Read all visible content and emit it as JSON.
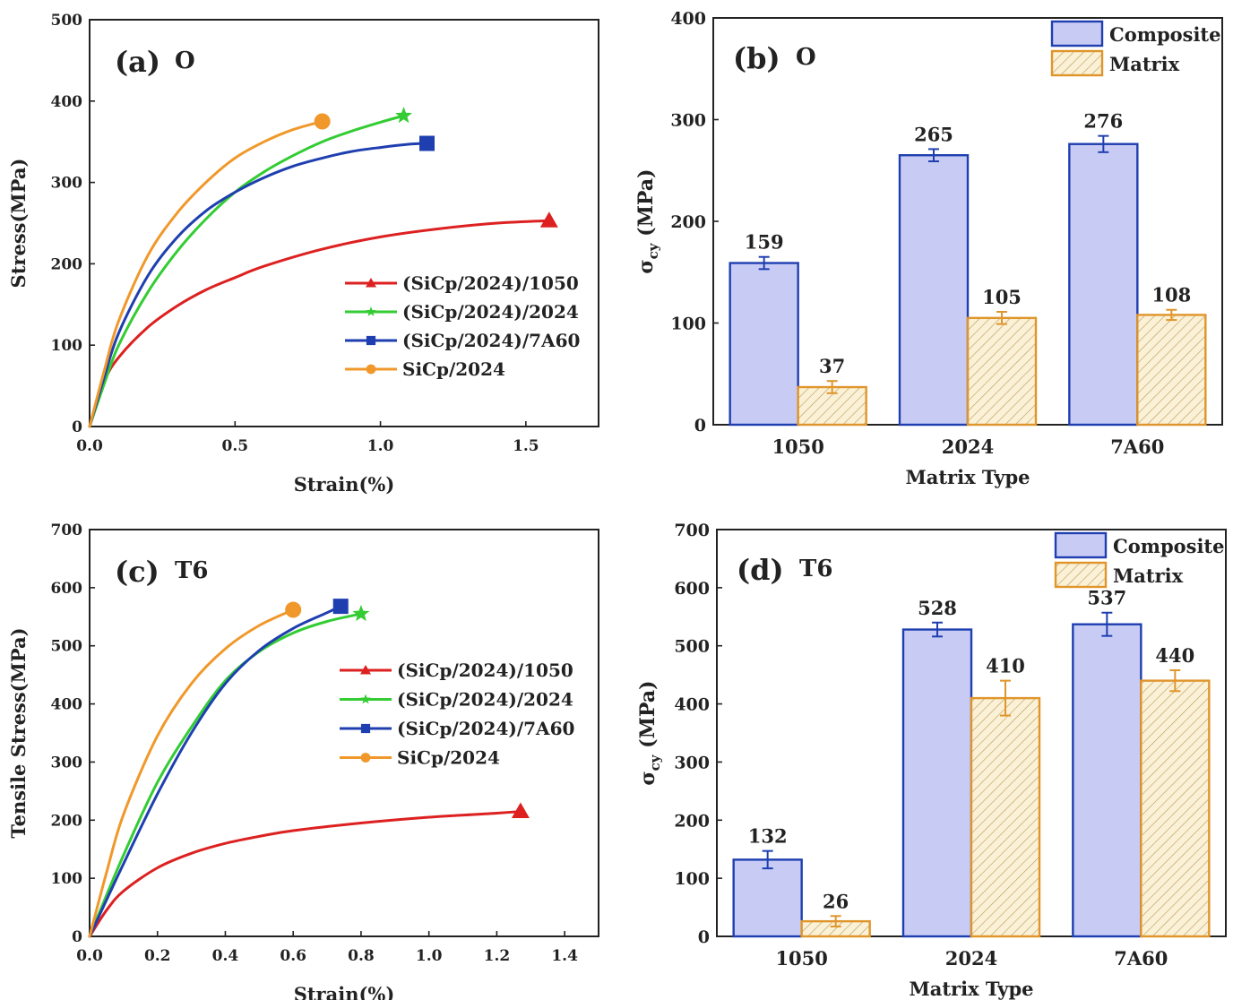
{
  "chart_data": [
    {
      "id": "a",
      "type": "line",
      "panel_label": "(a)",
      "condition": "O",
      "xlabel": "Strain(%)",
      "ylabel": "Stress(MPa)",
      "xlim": [
        0,
        1.75
      ],
      "ylim": [
        0,
        500
      ],
      "xticks": [
        0.0,
        0.5,
        1.0,
        1.5
      ],
      "xtick_labels": [
        "0.0",
        "0.5",
        "1.0",
        "1.5"
      ],
      "yticks": [
        0,
        100,
        200,
        300,
        400,
        500
      ],
      "ytick_labels": [
        "0",
        "100",
        "200",
        "300",
        "400",
        "500"
      ],
      "legend_position": "lower-right",
      "series": [
        {
          "name": "(SiCp/2024)/1050",
          "color": "#dd2020",
          "marker": "triangle",
          "x": [
            0,
            0.05,
            0.1,
            0.2,
            0.3,
            0.4,
            0.5,
            0.6,
            0.8,
            1.0,
            1.2,
            1.4,
            1.58
          ],
          "y": [
            0,
            55,
            85,
            122,
            148,
            168,
            183,
            197,
            218,
            233,
            243,
            250,
            253
          ]
        },
        {
          "name": "(SiCp/2024)/2024",
          "color": "#33cc33",
          "marker": "star",
          "x": [
            0,
            0.05,
            0.1,
            0.2,
            0.3,
            0.4,
            0.5,
            0.6,
            0.7,
            0.8,
            0.9,
            1.0,
            1.08
          ],
          "y": [
            0,
            52,
            100,
            165,
            215,
            255,
            288,
            313,
            333,
            350,
            363,
            374,
            382
          ]
        },
        {
          "name": "(SiCp/2024)/7A60",
          "color": "#1f3fb0",
          "marker": "square",
          "x": [
            0,
            0.05,
            0.1,
            0.2,
            0.3,
            0.4,
            0.5,
            0.6,
            0.7,
            0.8,
            0.9,
            1.0,
            1.1,
            1.16
          ],
          "y": [
            0,
            60,
            115,
            185,
            232,
            265,
            288,
            306,
            320,
            330,
            338,
            343,
            347,
            348
          ]
        },
        {
          "name": "SiCp/2024",
          "color": "#f0982a",
          "marker": "circle",
          "x": [
            0,
            0.05,
            0.1,
            0.2,
            0.3,
            0.4,
            0.5,
            0.6,
            0.7,
            0.8
          ],
          "y": [
            0,
            68,
            130,
            210,
            262,
            300,
            330,
            350,
            365,
            375
          ]
        }
      ]
    },
    {
      "id": "b",
      "type": "bar",
      "panel_label": "(b)",
      "condition": "O",
      "xlabel": "Matrix Type",
      "ylabel_main": "σ",
      "ylabel_sub": "cy",
      "ylabel_unit": "(MPa)",
      "ylim": [
        0,
        400
      ],
      "yticks": [
        0,
        100,
        200,
        300,
        400
      ],
      "ytick_labels": [
        "0",
        "100",
        "200",
        "300",
        "400"
      ],
      "categories": [
        "1050",
        "2024",
        "7A60"
      ],
      "legend_position": "top-right",
      "series": [
        {
          "name": "Composite",
          "fill": "#c8ccf5",
          "stroke": "#1f3fb0",
          "hatch": false,
          "values": [
            159,
            265,
            276
          ],
          "errors": [
            6,
            6,
            8
          ],
          "value_labels": [
            "159",
            "265",
            "276"
          ]
        },
        {
          "name": "Matrix",
          "fill": "#fbf1d6",
          "stroke": "#e0952a",
          "hatch": true,
          "values": [
            37,
            105,
            108
          ],
          "errors": [
            6,
            6,
            5
          ],
          "value_labels": [
            "37",
            "105",
            "108"
          ]
        }
      ]
    },
    {
      "id": "c",
      "type": "line",
      "panel_label": "(c)",
      "condition": "T6",
      "xlabel": "Strain(%)",
      "ylabel": "Tensile Stress(MPa)",
      "xlim": [
        0,
        1.5
      ],
      "ylim": [
        0,
        700
      ],
      "xticks": [
        0.0,
        0.2,
        0.4,
        0.6,
        0.8,
        1.0,
        1.2,
        1.4
      ],
      "xtick_labels": [
        "0.0",
        "0.2",
        "0.4",
        "0.6",
        "0.8",
        "1.0",
        "1.2",
        "1.4"
      ],
      "yticks": [
        0,
        100,
        200,
        300,
        400,
        500,
        600,
        700
      ],
      "ytick_labels": [
        "0",
        "100",
        "200",
        "300",
        "400",
        "500",
        "600",
        "700"
      ],
      "legend_position": "middle-right",
      "series": [
        {
          "name": "(SiCp/2024)/1050",
          "color": "#dd2020",
          "marker": "triangle",
          "x": [
            0,
            0.05,
            0.1,
            0.2,
            0.3,
            0.4,
            0.5,
            0.6,
            0.8,
            1.0,
            1.2,
            1.27
          ],
          "y": [
            0,
            45,
            78,
            118,
            143,
            160,
            172,
            182,
            195,
            205,
            212,
            215
          ]
        },
        {
          "name": "(SiCp/2024)/2024",
          "color": "#33cc33",
          "marker": "star",
          "x": [
            0,
            0.1,
            0.2,
            0.3,
            0.4,
            0.5,
            0.6,
            0.7,
            0.8
          ],
          "y": [
            0,
            140,
            265,
            360,
            440,
            490,
            522,
            542,
            555
          ]
        },
        {
          "name": "(SiCp/2024)/7A60",
          "color": "#1f3fb0",
          "marker": "square",
          "x": [
            0,
            0.1,
            0.2,
            0.3,
            0.4,
            0.5,
            0.6,
            0.7,
            0.74
          ],
          "y": [
            0,
            125,
            245,
            350,
            435,
            492,
            530,
            557,
            568
          ]
        },
        {
          "name": "SiCp/2024",
          "color": "#f0982a",
          "marker": "circle",
          "x": [
            0,
            0.05,
            0.1,
            0.2,
            0.3,
            0.4,
            0.5,
            0.6
          ],
          "y": [
            0,
            110,
            210,
            345,
            435,
            495,
            535,
            562
          ]
        }
      ]
    },
    {
      "id": "d",
      "type": "bar",
      "panel_label": "(d)",
      "condition": "T6",
      "xlabel": "Matrix Type",
      "ylabel_main": "σ",
      "ylabel_sub": "cy",
      "ylabel_unit": "(MPa)",
      "ylim": [
        0,
        700
      ],
      "yticks": [
        0,
        100,
        200,
        300,
        400,
        500,
        600,
        700
      ],
      "ytick_labels": [
        "0",
        "100",
        "200",
        "300",
        "400",
        "500",
        "600",
        "700"
      ],
      "categories": [
        "1050",
        "2024",
        "7A60"
      ],
      "legend_position": "top-right",
      "series": [
        {
          "name": "Composite",
          "fill": "#c8ccf5",
          "stroke": "#1f3fb0",
          "hatch": false,
          "values": [
            132,
            528,
            537
          ],
          "errors": [
            15,
            12,
            20
          ],
          "value_labels": [
            "132",
            "528",
            "537"
          ]
        },
        {
          "name": "Matrix",
          "fill": "#fbf1d6",
          "stroke": "#e0952a",
          "hatch": true,
          "values": [
            26,
            410,
            440
          ],
          "errors": [
            9,
            30,
            18
          ],
          "value_labels": [
            "26",
            "410",
            "440"
          ]
        }
      ]
    }
  ]
}
